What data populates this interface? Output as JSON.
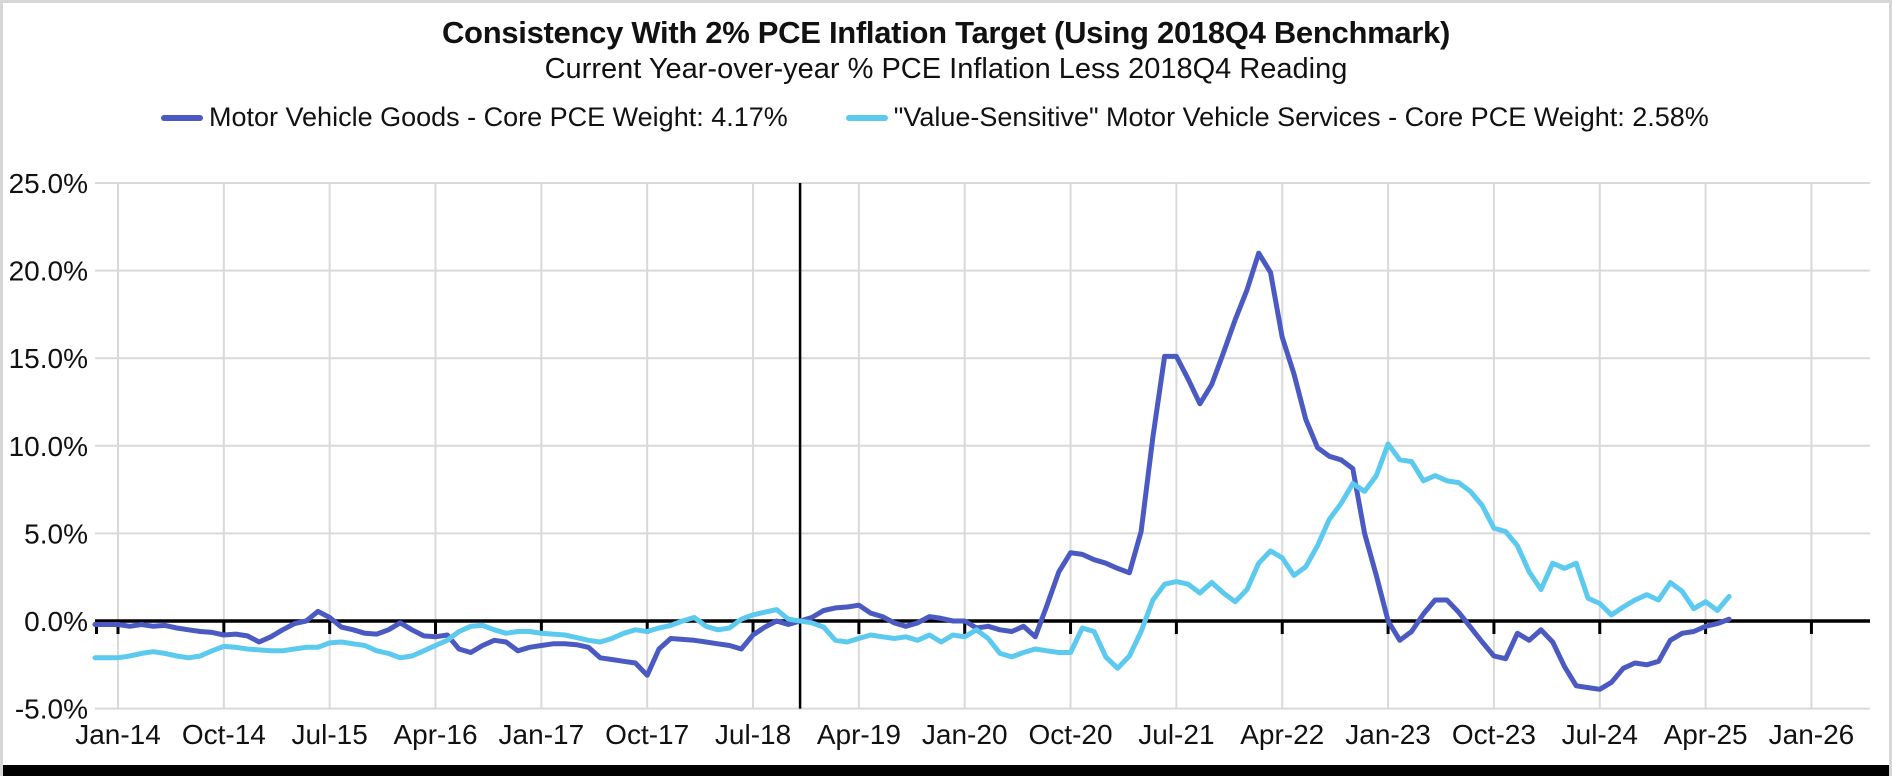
{
  "chart_data": {
    "type": "line",
    "title": "Consistency With 2% PCE Inflation Target (Using 2018Q4 Benchmark)",
    "subtitle": "Current Year-over-year % PCE Inflation Less 2018Q4 Reading",
    "x_frequency": "monthly",
    "x_start": "Jan-14",
    "x_end": "Jun-25",
    "x_axis_extends_to": "Jan-26",
    "x_tick_labels": [
      "Jan-14",
      "Oct-14",
      "Jul-15",
      "Apr-16",
      "Jan-17",
      "Oct-17",
      "Jul-18",
      "Apr-19",
      "Jan-20",
      "Oct-20",
      "Jul-21",
      "Apr-22",
      "Jan-23",
      "Oct-23",
      "Jul-24",
      "Apr-25",
      "Jan-26"
    ],
    "y_tick_labels": [
      "25.0%",
      "20.0%",
      "15.0%",
      "10.0%",
      "5.0%",
      "0.0%",
      "-5.0%"
    ],
    "y_tick_values": [
      25,
      20,
      15,
      10,
      5,
      0,
      -5
    ],
    "ylim": [
      -5,
      25
    ],
    "grid": true,
    "legend_position": "top",
    "benchmark_vline_month": "Nov-18",
    "benchmark_vline_meaning": "2018Q4 benchmark",
    "colors": {
      "series1": "#4a5ac2",
      "series2": "#5cc9ef",
      "gridline": "#d9d9d9",
      "axis": "#000000",
      "frame_border": "#d6d6d6",
      "bottom_bar": "#000000"
    },
    "series": [
      {
        "name": "Motor Vehicle Goods - Core PCE Weight: 4.17%",
        "color": "#4a5ac2",
        "values": [
          -0.2,
          -0.3,
          -0.2,
          -0.3,
          -0.25,
          -0.4,
          -0.5,
          -0.6,
          -0.65,
          -0.8,
          -0.75,
          -0.85,
          -1.2,
          -0.9,
          -0.5,
          -0.15,
          0.0,
          0.55,
          0.2,
          -0.35,
          -0.5,
          -0.7,
          -0.75,
          -0.5,
          -0.1,
          -0.5,
          -0.85,
          -0.9,
          -0.8,
          -1.6,
          -1.8,
          -1.4,
          -1.1,
          -1.2,
          -1.7,
          -1.5,
          -1.4,
          -1.3,
          -1.3,
          -1.35,
          -1.5,
          -2.1,
          -2.2,
          -2.3,
          -2.4,
          -3.1,
          -1.6,
          -1.0,
          -1.05,
          -1.1,
          -1.2,
          -1.3,
          -1.4,
          -1.6,
          -0.8,
          -0.35,
          0.0,
          -0.2,
          0.0,
          0.2,
          0.6,
          0.75,
          0.8,
          0.9,
          0.45,
          0.25,
          -0.1,
          -0.3,
          -0.1,
          0.25,
          0.15,
          0.0,
          0.0,
          -0.4,
          -0.3,
          -0.5,
          -0.6,
          -0.3,
          -0.9,
          0.9,
          2.8,
          3.9,
          3.8,
          3.5,
          3.3,
          3.0,
          2.75,
          5.1,
          10.5,
          15.1,
          15.1,
          13.8,
          12.4,
          13.5,
          15.3,
          17.2,
          18.9,
          21.0,
          19.9,
          16.2,
          14.1,
          11.5,
          9.9,
          9.4,
          9.2,
          8.7,
          5.0,
          2.6,
          0.0,
          -1.1,
          -0.6,
          0.4,
          1.2,
          1.2,
          0.5,
          -0.35,
          -1.2,
          -2.0,
          -2.15,
          -0.7,
          -1.1,
          -0.5,
          -1.2,
          -2.6,
          -3.7,
          -3.8,
          -3.9,
          -3.5,
          -2.7,
          -2.4,
          -2.5,
          -2.3,
          -1.1,
          -0.7,
          -0.6,
          -0.3,
          -0.15,
          0.1
        ]
      },
      {
        "name": "\"Value-Sensitive\" Motor Vehicle Services - Core PCE Weight: 2.58%",
        "color": "#5cc9ef",
        "values": [
          -2.1,
          -2.0,
          -1.85,
          -1.75,
          -1.85,
          -2.0,
          -2.1,
          -2.0,
          -1.7,
          -1.45,
          -1.5,
          -1.6,
          -1.65,
          -1.7,
          -1.7,
          -1.6,
          -1.5,
          -1.5,
          -1.25,
          -1.2,
          -1.3,
          -1.4,
          -1.7,
          -1.85,
          -2.1,
          -2.0,
          -1.7,
          -1.4,
          -1.1,
          -0.6,
          -0.3,
          -0.25,
          -0.5,
          -0.7,
          -0.6,
          -0.6,
          -0.7,
          -0.75,
          -0.8,
          -0.95,
          -1.1,
          -1.2,
          -1.0,
          -0.7,
          -0.5,
          -0.6,
          -0.4,
          -0.25,
          0.0,
          0.2,
          -0.3,
          -0.5,
          -0.4,
          0.1,
          0.35,
          0.5,
          0.65,
          0.1,
          0.0,
          -0.1,
          -0.35,
          -1.1,
          -1.2,
          -1.0,
          -0.8,
          -0.9,
          -1.0,
          -0.9,
          -1.1,
          -0.8,
          -1.2,
          -0.8,
          -0.9,
          -0.5,
          -1.0,
          -1.85,
          -2.05,
          -1.8,
          -1.6,
          -1.7,
          -1.8,
          -1.8,
          -0.4,
          -0.6,
          -2.05,
          -2.7,
          -2.0,
          -0.6,
          1.2,
          2.1,
          2.25,
          2.1,
          1.6,
          2.2,
          1.6,
          1.1,
          1.8,
          3.3,
          4.0,
          3.6,
          2.6,
          3.1,
          4.3,
          5.8,
          6.7,
          7.85,
          7.4,
          8.3,
          10.1,
          9.2,
          9.1,
          8.0,
          8.3,
          8.0,
          7.9,
          7.4,
          6.6,
          5.3,
          5.1,
          4.3,
          2.8,
          1.8,
          3.3,
          3.0,
          3.3,
          1.3,
          1.0,
          0.35,
          0.8,
          1.2,
          1.5,
          1.2,
          2.2,
          1.7,
          0.7,
          1.1,
          0.6,
          1.4
        ]
      }
    ]
  }
}
